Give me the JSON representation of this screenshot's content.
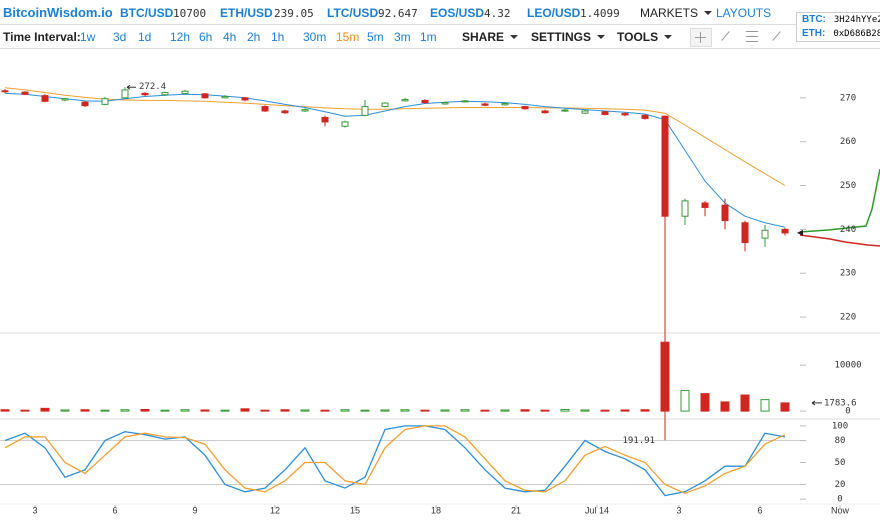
{
  "header": {
    "logo": "BitcoinWisdom.io",
    "tickers": [
      {
        "symbol": "BTC/USD",
        "price": "10700"
      },
      {
        "symbol": "ETH/USD",
        "price": "239.05"
      },
      {
        "symbol": "LTC/USD",
        "price": "92.647"
      },
      {
        "symbol": "EOS/USD",
        "price": "4.32"
      },
      {
        "symbol": "LEO/USD",
        "price": "1.4099"
      }
    ],
    "menus": [
      "MARKETS",
      "LAYOUTS"
    ],
    "donate": [
      {
        "coin": "BTC:",
        "address": "3H24hYYe2"
      },
      {
        "coin": "ETH:",
        "address": "0xD686B28"
      }
    ]
  },
  "toolbar": {
    "label": "Time Interval:",
    "intervals": [
      "1w",
      "3d",
      "1d",
      "12h",
      "6h",
      "4h",
      "2h",
      "1h",
      "30m",
      "15m",
      "5m",
      "3m",
      "1m"
    ],
    "active_interval_index": 9,
    "interval_color": "#1a7fd4",
    "active_color": "#f08a1c",
    "menus": [
      "SHARE",
      "SETTINGS",
      "TOOLS"
    ]
  },
  "chart_data": {
    "type": "candlestick",
    "up_color": "#3a9a3a",
    "down_color": "#d0261f",
    "open": [
      271.6,
      271.3,
      270.5,
      269.5,
      269,
      268.5,
      270,
      271,
      270.7,
      271,
      270.9,
      270,
      270,
      268,
      267,
      267,
      265.5,
      263.5,
      266,
      268,
      269.3,
      269.4,
      268.6,
      269.1,
      268.6,
      268.4,
      268,
      267,
      267,
      266.5,
      266.8,
      266.4,
      266,
      265.8,
      243,
      246,
      245.5,
      241.5,
      238,
      240
    ],
    "high": [
      272,
      271.5,
      270.8,
      270,
      269.3,
      270.2,
      272.4,
      271.3,
      271.4,
      271.8,
      271.1,
      270.6,
      270.2,
      268.3,
      267.3,
      267.6,
      266,
      264.8,
      269.5,
      269,
      270,
      269.7,
      269.1,
      269.5,
      268.9,
      269,
      268.2,
      267.3,
      267.5,
      267.3,
      267,
      266.7,
      266.2,
      266,
      247,
      246.5,
      247,
      242,
      241,
      240.3
    ],
    "low": [
      271,
      270.6,
      269,
      269.2,
      267.9,
      268.3,
      269.8,
      270.4,
      270.4,
      270.8,
      269.8,
      269.8,
      269.2,
      266.8,
      266.3,
      266.8,
      263.5,
      263.2,
      265.8,
      267.8,
      269.2,
      268.7,
      268.4,
      269,
      268.1,
      268.2,
      267.3,
      266.4,
      266.8,
      266.3,
      266,
      265.8,
      265,
      191.91,
      241,
      243,
      240,
      235,
      236,
      238.6
    ],
    "close": [
      271.4,
      270.8,
      269.2,
      269.8,
      268.2,
      269.8,
      271.8,
      270.7,
      271.2,
      271.5,
      270,
      270.3,
      269.5,
      267,
      266.6,
      267.3,
      264.5,
      264.5,
      268,
      268.8,
      269.6,
      268.9,
      268.9,
      269.3,
      268.3,
      268.7,
      267.5,
      266.6,
      267.2,
      267,
      266.2,
      266.1,
      265.3,
      243,
      246.5,
      245,
      242,
      237,
      239.8,
      239.2
    ],
    "ma_fast": {
      "color": "#2a8fd8",
      "values": [
        271,
        270.8,
        270.3,
        269.8,
        269.3,
        269.2,
        269.8,
        270.3,
        270.6,
        270.8,
        270.7,
        270.4,
        270,
        269.3,
        268.5,
        267.8,
        266.8,
        265.8,
        266,
        267,
        268,
        268.7,
        269,
        269.2,
        269.1,
        268.9,
        268.5,
        268,
        267.6,
        267.3,
        267,
        266.7,
        266.3,
        265,
        258,
        251,
        246,
        243,
        241.5,
        240.5
      ]
    },
    "ma_slow": {
      "color": "#f0a030",
      "values": [
        272.3,
        271.8,
        271.2,
        270.6,
        270.1,
        269.7,
        269.5,
        269.4,
        269.4,
        269.3,
        269.2,
        269,
        268.8,
        268.5,
        268.2,
        268,
        267.7,
        267.5,
        267.4,
        267.4,
        267.5,
        267.6,
        267.7,
        267.8,
        267.8,
        267.8,
        267.8,
        267.7,
        267.7,
        267.6,
        267.5,
        267.4,
        267.2,
        266.5,
        263.8,
        261,
        258.2,
        255.4,
        252.7,
        250
      ]
    },
    "ylim": [
      216.6,
      275.2
    ],
    "yticks": [
      220,
      230,
      240,
      250,
      260,
      270
    ],
    "xlim": [
      -0.25,
      39.75
    ],
    "xticks": [
      {
        "value": 1.5,
        "label": "3"
      },
      {
        "value": 5.5,
        "label": "6"
      },
      {
        "value": 9.5,
        "label": "9"
      },
      {
        "value": 13.5,
        "label": "12"
      },
      {
        "value": 17.5,
        "label": "15"
      },
      {
        "value": 21.55,
        "label": "18"
      },
      {
        "value": 25.55,
        "label": "21"
      },
      {
        "value": 29.6,
        "label": "Jul 14"
      },
      {
        "value": 33.7,
        "label": "3"
      },
      {
        "value": 37.75,
        "label": "6"
      },
      {
        "value": 41.75,
        "label": "Now"
      }
    ],
    "volume": {
      "values": [
        300,
        200,
        600,
        250,
        300,
        200,
        300,
        350,
        200,
        300,
        250,
        200,
        500,
        200,
        300,
        250,
        200,
        300,
        200,
        250,
        300,
        200,
        250,
        300,
        200,
        250,
        300,
        200,
        350,
        250,
        200,
        250,
        300,
        15000,
        4500,
        3800,
        2000,
        3500,
        2500,
        1783.6
      ],
      "ylim": [
        -1500,
        17000
      ],
      "yticks": [
        0,
        10000
      ]
    },
    "oscillator": {
      "lines": [
        {
          "color": "#2a8fd8",
          "values": [
            80,
            90,
            70,
            30,
            40,
            80,
            92,
            88,
            82,
            85,
            60,
            20,
            10,
            15,
            40,
            70,
            25,
            15,
            30,
            95,
            100,
            100,
            95,
            70,
            40,
            15,
            10,
            12,
            45,
            80,
            65,
            55,
            40,
            5,
            10,
            25,
            45,
            45,
            90,
            85
          ]
        },
        {
          "color": "#f0a030",
          "values": [
            70,
            85,
            85,
            50,
            35,
            60,
            85,
            90,
            85,
            84,
            75,
            40,
            15,
            10,
            25,
            50,
            50,
            25,
            20,
            70,
            95,
            100,
            100,
            85,
            55,
            25,
            12,
            10,
            25,
            60,
            72,
            60,
            50,
            20,
            8,
            18,
            35,
            45,
            75,
            88
          ]
        }
      ],
      "ylim": [
        -8,
        108
      ],
      "yticks": [
        0,
        20,
        50,
        80,
        100
      ]
    }
  }
}
